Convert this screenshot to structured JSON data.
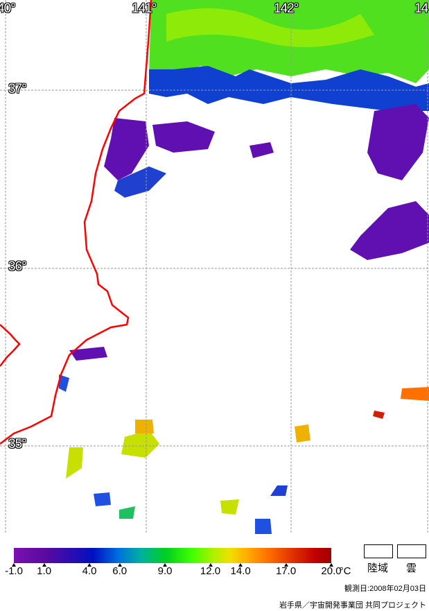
{
  "map": {
    "lon_labels": [
      "40°",
      "141°",
      "142°",
      "14"
    ],
    "lat_labels": [
      "37°",
      "36°",
      "35°"
    ],
    "coastline_color": "#ff0000",
    "grid_style": "dashed gray"
  },
  "legend": {
    "unit": "°C",
    "ticks": [
      -1.0,
      1.0,
      4.0,
      6.0,
      9.0,
      12.0,
      14.0,
      17.0,
      20.0
    ],
    "tick_labels": [
      "-1.0",
      "1.0",
      "4.0",
      "6.0",
      "9.0",
      "12.0",
      "14.0",
      "17.0",
      "20.0"
    ],
    "range": [
      -1.0,
      20.0
    ],
    "land_label": "陸域",
    "cloud_label": "雲"
  },
  "footer": {
    "observation_date": "観測日:2008年02月03日",
    "credit": "岩手県／宇宙開発事業団 共同プロジェクト"
  }
}
